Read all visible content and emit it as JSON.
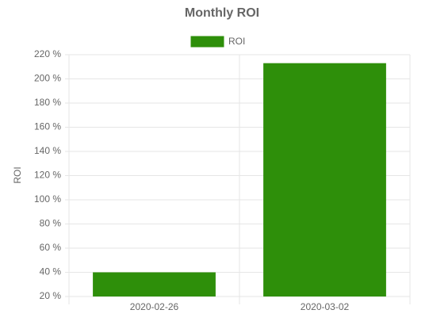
{
  "chart_data": {
    "type": "bar",
    "title": "Monthly ROI",
    "categories": [
      "2020-02-26",
      "2020-03-02"
    ],
    "series": [
      {
        "name": "ROI",
        "color": "#2e8f0a",
        "values": [
          40,
          213
        ]
      }
    ],
    "y_label": "ROI",
    "ylim": [
      20,
      220
    ],
    "yticks": [
      {
        "value": 20,
        "label": "20 %"
      },
      {
        "value": 40,
        "label": "40 %"
      },
      {
        "value": 60,
        "label": "60 %"
      },
      {
        "value": 80,
        "label": "80 %"
      },
      {
        "value": 100,
        "label": "100 %"
      },
      {
        "value": 120,
        "label": "120 %"
      },
      {
        "value": 140,
        "label": "140 %"
      },
      {
        "value": 160,
        "label": "160 %"
      },
      {
        "value": 180,
        "label": "180 %"
      },
      {
        "value": 200,
        "label": "200 %"
      },
      {
        "value": 220,
        "label": "220 %"
      }
    ],
    "grid": true,
    "legend": "top"
  }
}
